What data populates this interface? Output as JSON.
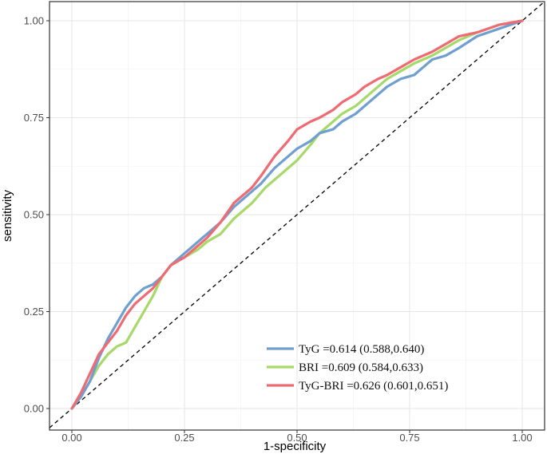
{
  "chart_data": {
    "type": "line",
    "title": "",
    "xlabel": "1-specificity",
    "ylabel": "sensitivity",
    "xlim": [
      0,
      1
    ],
    "ylim": [
      0,
      1
    ],
    "x_ticks": [
      "0.00",
      "0.25",
      "0.50",
      "0.75",
      "1.00"
    ],
    "y_ticks": [
      "0.00",
      "0.25",
      "0.50",
      "0.75",
      "1.00"
    ],
    "grid": true,
    "legend_position": "bottom-right",
    "reference_line": {
      "style": "dashed",
      "color": "#000000",
      "points": [
        [
          0,
          0
        ],
        [
          1,
          1
        ]
      ]
    },
    "series": [
      {
        "name": "TyG =0.614 (0.588,0.640)",
        "color": "#6f9fcf",
        "points": [
          [
            0,
            0
          ],
          [
            0.02,
            0.03
          ],
          [
            0.04,
            0.07
          ],
          [
            0.06,
            0.13
          ],
          [
            0.08,
            0.18
          ],
          [
            0.1,
            0.22
          ],
          [
            0.12,
            0.26
          ],
          [
            0.14,
            0.29
          ],
          [
            0.16,
            0.31
          ],
          [
            0.18,
            0.32
          ],
          [
            0.2,
            0.34
          ],
          [
            0.22,
            0.37
          ],
          [
            0.25,
            0.4
          ],
          [
            0.28,
            0.43
          ],
          [
            0.3,
            0.45
          ],
          [
            0.33,
            0.48
          ],
          [
            0.36,
            0.52
          ],
          [
            0.4,
            0.56
          ],
          [
            0.42,
            0.58
          ],
          [
            0.45,
            0.62
          ],
          [
            0.48,
            0.65
          ],
          [
            0.5,
            0.67
          ],
          [
            0.53,
            0.69
          ],
          [
            0.55,
            0.71
          ],
          [
            0.58,
            0.72
          ],
          [
            0.6,
            0.74
          ],
          [
            0.63,
            0.76
          ],
          [
            0.65,
            0.78
          ],
          [
            0.68,
            0.81
          ],
          [
            0.7,
            0.83
          ],
          [
            0.73,
            0.85
          ],
          [
            0.76,
            0.86
          ],
          [
            0.78,
            0.88
          ],
          [
            0.8,
            0.9
          ],
          [
            0.83,
            0.91
          ],
          [
            0.86,
            0.93
          ],
          [
            0.9,
            0.96
          ],
          [
            0.95,
            0.98
          ],
          [
            1,
            1
          ]
        ]
      },
      {
        "name": "BRI =0.609 (0.584,0.633)",
        "color": "#a6d96a",
        "points": [
          [
            0,
            0
          ],
          [
            0.02,
            0.03
          ],
          [
            0.04,
            0.07
          ],
          [
            0.06,
            0.11
          ],
          [
            0.08,
            0.14
          ],
          [
            0.1,
            0.16
          ],
          [
            0.12,
            0.17
          ],
          [
            0.14,
            0.21
          ],
          [
            0.16,
            0.25
          ],
          [
            0.18,
            0.29
          ],
          [
            0.2,
            0.34
          ],
          [
            0.22,
            0.37
          ],
          [
            0.25,
            0.39
          ],
          [
            0.28,
            0.41
          ],
          [
            0.3,
            0.43
          ],
          [
            0.33,
            0.45
          ],
          [
            0.36,
            0.49
          ],
          [
            0.4,
            0.53
          ],
          [
            0.43,
            0.57
          ],
          [
            0.46,
            0.6
          ],
          [
            0.5,
            0.64
          ],
          [
            0.53,
            0.68
          ],
          [
            0.55,
            0.71
          ],
          [
            0.58,
            0.74
          ],
          [
            0.6,
            0.76
          ],
          [
            0.63,
            0.78
          ],
          [
            0.65,
            0.8
          ],
          [
            0.68,
            0.83
          ],
          [
            0.7,
            0.85
          ],
          [
            0.73,
            0.87
          ],
          [
            0.76,
            0.89
          ],
          [
            0.8,
            0.91
          ],
          [
            0.83,
            0.93
          ],
          [
            0.86,
            0.95
          ],
          [
            0.9,
            0.97
          ],
          [
            0.95,
            0.99
          ],
          [
            1,
            1
          ]
        ]
      },
      {
        "name": "TyG-BRI =0.626 (0.601,0.651)",
        "color": "#ef6b73",
        "points": [
          [
            0,
            0
          ],
          [
            0.02,
            0.04
          ],
          [
            0.04,
            0.09
          ],
          [
            0.06,
            0.14
          ],
          [
            0.08,
            0.17
          ],
          [
            0.1,
            0.2
          ],
          [
            0.12,
            0.24
          ],
          [
            0.14,
            0.27
          ],
          [
            0.16,
            0.29
          ],
          [
            0.18,
            0.31
          ],
          [
            0.2,
            0.34
          ],
          [
            0.22,
            0.37
          ],
          [
            0.25,
            0.39
          ],
          [
            0.28,
            0.42
          ],
          [
            0.3,
            0.44
          ],
          [
            0.33,
            0.48
          ],
          [
            0.36,
            0.53
          ],
          [
            0.38,
            0.55
          ],
          [
            0.4,
            0.57
          ],
          [
            0.42,
            0.6
          ],
          [
            0.45,
            0.65
          ],
          [
            0.48,
            0.69
          ],
          [
            0.5,
            0.72
          ],
          [
            0.53,
            0.74
          ],
          [
            0.55,
            0.75
          ],
          [
            0.58,
            0.77
          ],
          [
            0.6,
            0.79
          ],
          [
            0.63,
            0.81
          ],
          [
            0.65,
            0.83
          ],
          [
            0.68,
            0.85
          ],
          [
            0.7,
            0.86
          ],
          [
            0.73,
            0.88
          ],
          [
            0.76,
            0.9
          ],
          [
            0.8,
            0.92
          ],
          [
            0.83,
            0.94
          ],
          [
            0.86,
            0.96
          ],
          [
            0.9,
            0.97
          ],
          [
            0.95,
            0.99
          ],
          [
            1,
            1
          ]
        ]
      }
    ]
  }
}
